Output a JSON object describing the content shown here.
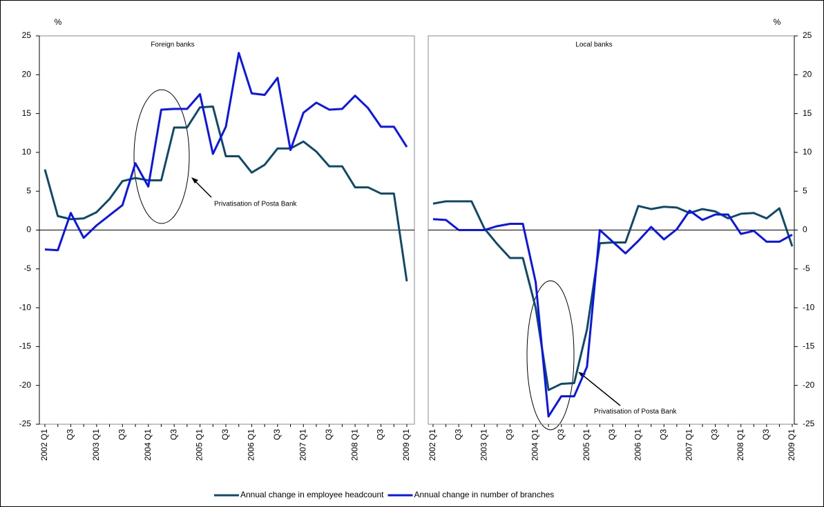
{
  "chart_data": {
    "type": "line",
    "categories": [
      "2002 Q1",
      null,
      "Q3",
      null,
      "2003 Q1",
      null,
      "Q3",
      null,
      "2004 Q1",
      null,
      "Q3",
      null,
      "2005 Q1",
      null,
      "Q3",
      null,
      "2006 Q1",
      null,
      "Q3",
      null,
      "2007 Q1",
      null,
      "Q3",
      null,
      "2008 Q1",
      null,
      "Q3",
      null,
      "2009 Q1"
    ],
    "series": [
      {
        "name": "Annual change in employee headcount",
        "color": "#0d4a6a"
      },
      {
        "name": "Annual change in number of branches",
        "color": "#0a14f0"
      }
    ],
    "ylim": [
      -25,
      25
    ],
    "yticks": [
      -25,
      -20,
      -15,
      -10,
      -5,
      0,
      5,
      10,
      15,
      20,
      25
    ],
    "grid": false,
    "panels": [
      {
        "title": "Foreign banks",
        "ylabel": "%",
        "axis_side": "left",
        "annotation": "Privatisation of Posta Bank",
        "series": [
          {
            "values": [
              7.8,
              1.8,
              1.4,
              1.5,
              2.3,
              4.0,
              6.3,
              6.7,
              6.4,
              6.4,
              13.2,
              13.2,
              15.8,
              15.9,
              9.5,
              9.5,
              7.4,
              8.4,
              10.5,
              10.5,
              11.4,
              10.1,
              8.2,
              8.2,
              5.5,
              5.5,
              4.7,
              4.7,
              -6.6
            ]
          },
          {
            "values": [
              -2.5,
              -2.6,
              2.2,
              -1.0,
              0.6,
              1.9,
              3.2,
              8.6,
              5.6,
              15.5,
              15.6,
              15.6,
              17.5,
              9.8,
              13.3,
              22.8,
              17.6,
              17.4,
              19.6,
              10.3,
              15.1,
              16.4,
              15.5,
              15.6,
              17.3,
              15.7,
              13.3,
              13.3,
              10.7
            ]
          }
        ]
      },
      {
        "title": "Local banks",
        "ylabel": "%",
        "axis_side": "right",
        "annotation": "Privatisation of Posta Bank",
        "series": [
          {
            "values": [
              3.4,
              3.7,
              3.7,
              3.7,
              0.2,
              -1.8,
              -3.6,
              -3.6,
              -10.0,
              -20.6,
              -19.8,
              -19.7,
              -12.8,
              -1.7,
              -1.6,
              -1.6,
              3.1,
              2.7,
              3.0,
              2.9,
              2.2,
              2.7,
              2.4,
              1.5,
              2.1,
              2.2,
              1.5,
              2.8,
              -2.1
            ]
          },
          {
            "values": [
              1.4,
              1.3,
              0.0,
              0.0,
              0.0,
              0.5,
              0.8,
              0.8,
              -6.7,
              -24.0,
              -21.4,
              -21.4,
              -17.6,
              0.0,
              -1.5,
              -3.0,
              -1.4,
              0.4,
              -1.2,
              0.1,
              2.5,
              1.3,
              2.0,
              2.0,
              -0.5,
              -0.1,
              -1.5,
              -1.5,
              -0.6
            ]
          }
        ]
      }
    ]
  }
}
